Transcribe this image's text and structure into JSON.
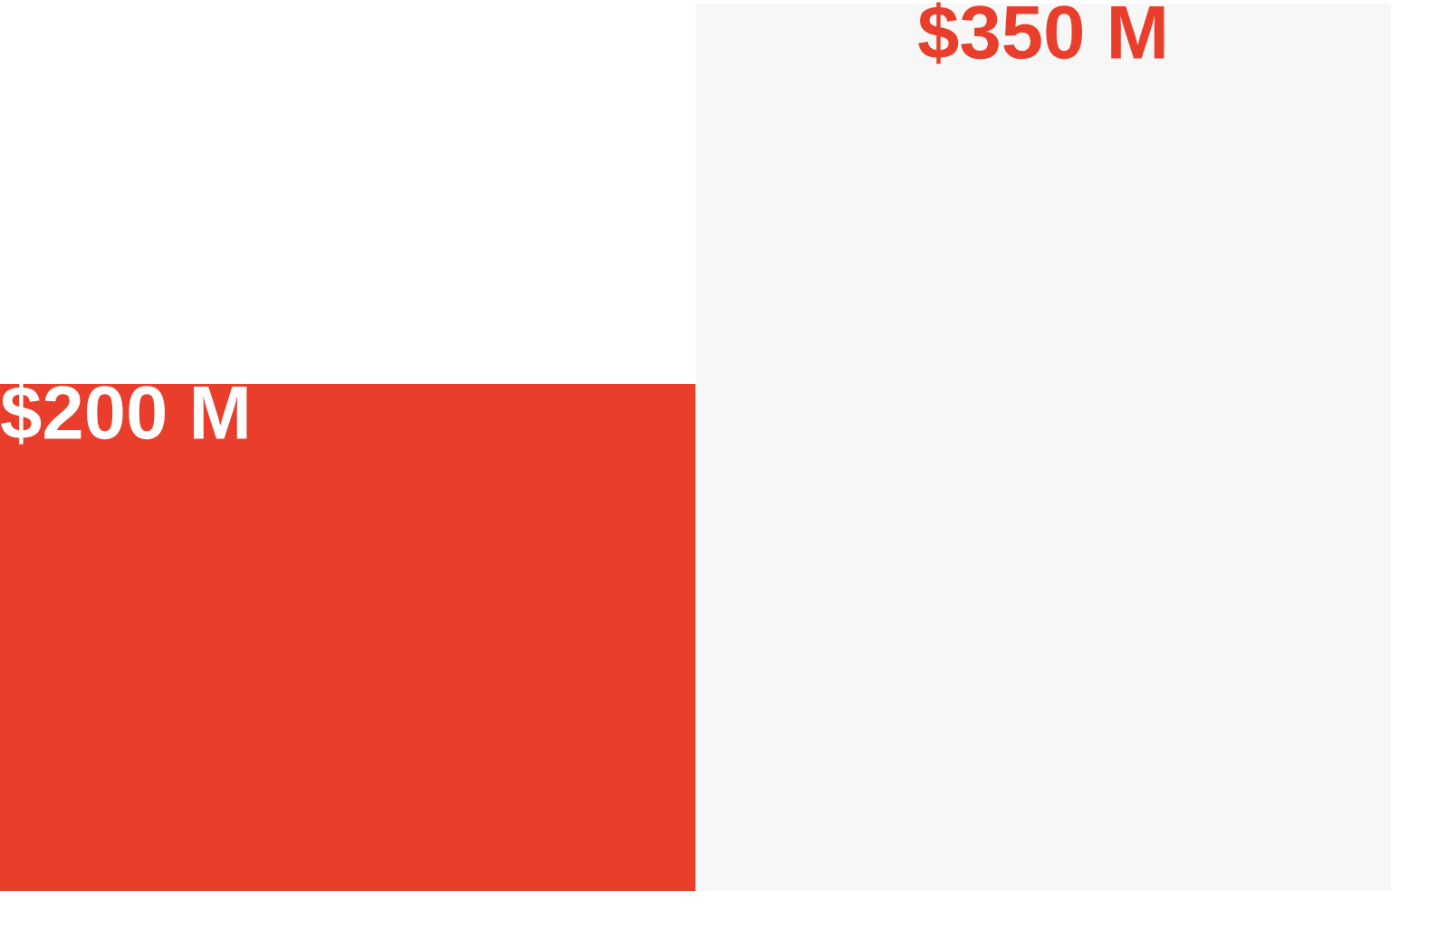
{
  "chart_data": {
    "type": "bar",
    "categories": [
      null,
      null
    ],
    "values": [
      200,
      350
    ],
    "colors": [
      "#e83e2b",
      "#f7f7f7"
    ],
    "value_labels": [
      "$200 M",
      "$350 M"
    ]
  }
}
